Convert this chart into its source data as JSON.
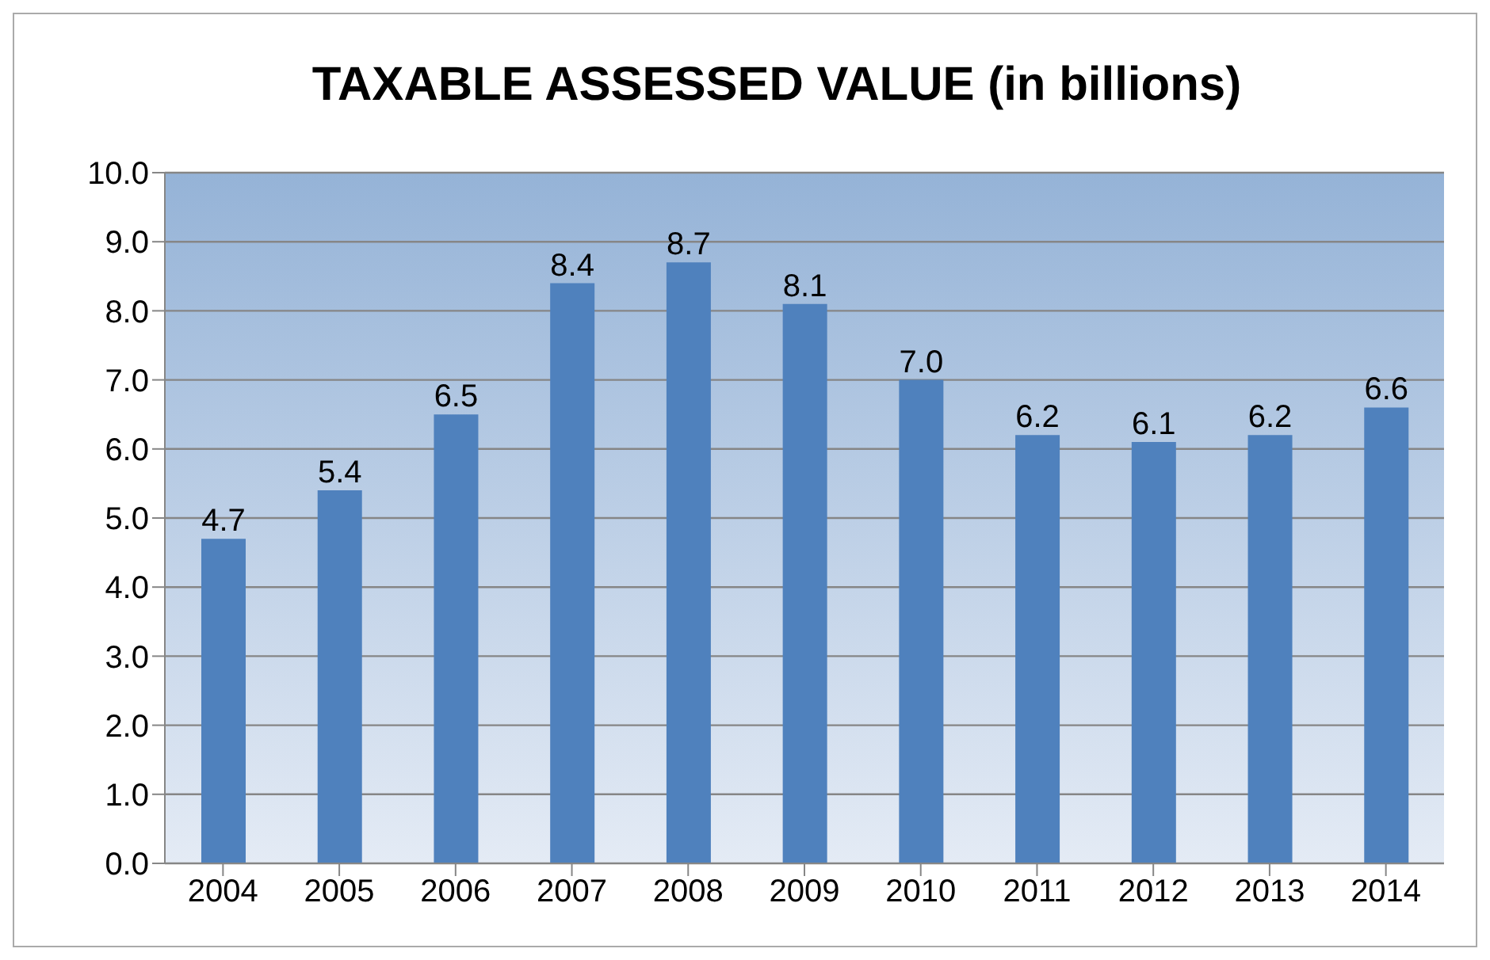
{
  "chart_data": {
    "type": "bar",
    "title": "TAXABLE ASSESSED VALUE (in billions)",
    "categories": [
      "2004",
      "2005",
      "2006",
      "2007",
      "2008",
      "2009",
      "2010",
      "2011",
      "2012",
      "2013",
      "2014"
    ],
    "values": [
      4.7,
      5.4,
      6.5,
      8.4,
      8.7,
      8.1,
      7.0,
      6.2,
      6.1,
      6.2,
      6.6
    ],
    "value_labels": [
      "4.7",
      "5.4",
      "6.5",
      "8.4",
      "8.7",
      "8.1",
      "7.0",
      "6.2",
      "6.1",
      "6.2",
      "6.6"
    ],
    "color": "#4f81bd",
    "ylim": [
      0,
      10
    ],
    "yticks": [
      {
        "value": 0,
        "label": "0.0"
      },
      {
        "value": 1,
        "label": "1.0"
      },
      {
        "value": 2,
        "label": "2.0"
      },
      {
        "value": 3,
        "label": "3.0"
      },
      {
        "value": 4,
        "label": "4.0"
      },
      {
        "value": 5,
        "label": "5.0"
      },
      {
        "value": 6,
        "label": "6.0"
      },
      {
        "value": 7,
        "label": "7.0"
      },
      {
        "value": 8,
        "label": "8.0"
      },
      {
        "value": 9,
        "label": "9.0"
      },
      {
        "value": 10,
        "label": "10.0"
      }
    ],
    "grid": "y"
  }
}
